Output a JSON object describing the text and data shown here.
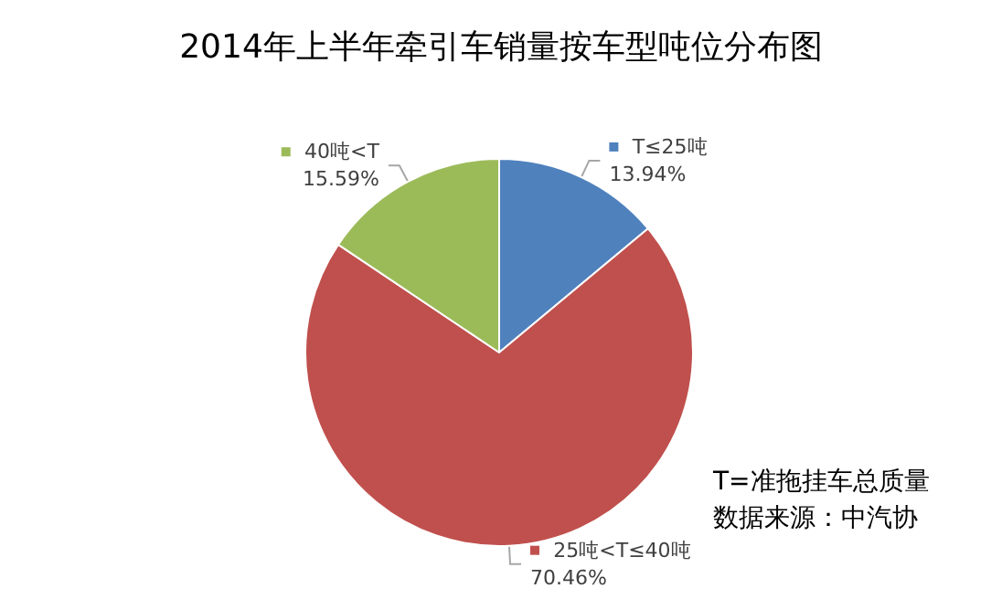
{
  "chart_data": {
    "type": "pie",
    "title": "2014年上半年牵引车销量按车型吨位分布图",
    "categories": [
      "T≤25吨",
      "25吨<T≤40吨",
      "40吨<T"
    ],
    "values": [
      13.94,
      70.46,
      15.59
    ],
    "value_labels": [
      "13.94%",
      "70.46%",
      "15.59%"
    ],
    "colors": [
      "#4f81bd",
      "#c0504d",
      "#9bbb59"
    ],
    "legend": "top",
    "annotations": [
      "T=准拖挂车总质量",
      "数据来源：中汽协"
    ]
  }
}
